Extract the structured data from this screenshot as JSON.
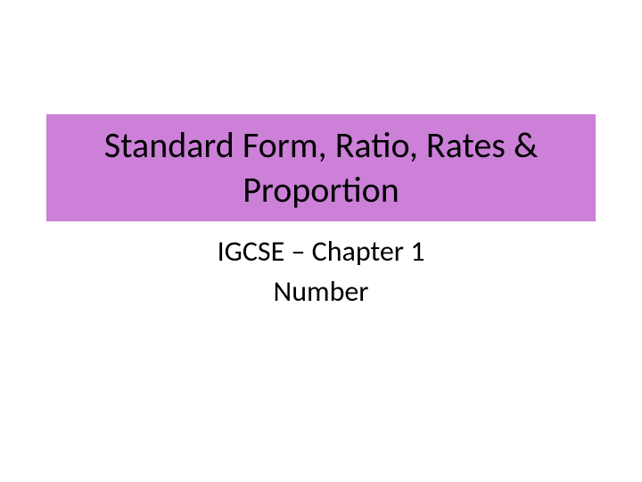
{
  "slide": {
    "title": "Standard Form, Ratio, Rates & Proportion",
    "subtitle_line1": "IGCSE – Chapter 1",
    "subtitle_line2": "Number",
    "title_background_color": "#cc80d8",
    "title_text_color": "#000000",
    "subtitle_text_color": "#000000",
    "background_color": "#ffffff",
    "title_fontsize": 40,
    "subtitle_fontsize": 32
  }
}
